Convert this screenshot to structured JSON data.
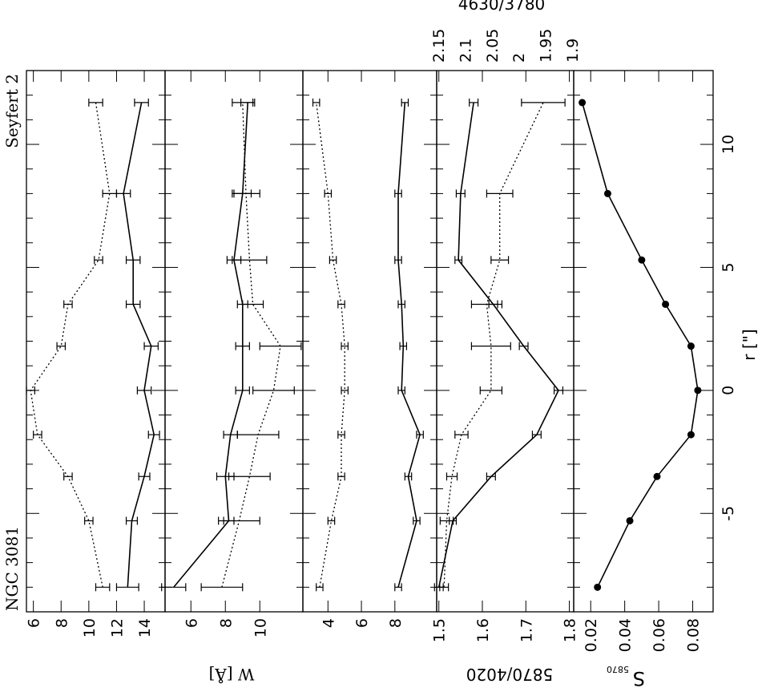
{
  "figure": {
    "object_label": "NGC 3081",
    "class_label": "Seyfert 2",
    "r_label": "r [\"]",
    "w_label": "W [Å]",
    "ratio_label": "5870/4020",
    "s_label": "S",
    "s_subscript": "5870",
    "top_axis_title": "4630/3780"
  },
  "chart_data": [
    {
      "type": "line",
      "panel": "W panel 1",
      "x": [
        -8,
        -5.3,
        -3.5,
        -1.8,
        0,
        1.8,
        3.5,
        5.3,
        8,
        11.7
      ],
      "ylim": [
        5.5,
        15.5
      ],
      "yticks": [
        6,
        8,
        10,
        12,
        14
      ],
      "series": [
        {
          "style": "solid",
          "values": [
            12.8,
            13.1,
            14.0,
            14.7,
            14.0,
            14.5,
            13.2,
            13.2,
            12.5,
            13.8
          ],
          "errors": [
            0.8,
            0.4,
            0.4,
            0.4,
            0.5,
            0.5,
            0.5,
            0.5,
            0.5,
            0.5
          ]
        },
        {
          "style": "dotted",
          "values": [
            11.0,
            10.0,
            8.5,
            6.3,
            5.8,
            8.0,
            8.5,
            10.7,
            11.5,
            10.5
          ],
          "errors": [
            0.5,
            0.3,
            0.3,
            0.3,
            0.3,
            0.3,
            0.3,
            0.3,
            0.5,
            0.5
          ]
        }
      ]
    },
    {
      "type": "line",
      "panel": "W panel 2",
      "x": [
        -8,
        -5.3,
        -3.5,
        -1.8,
        0,
        1.8,
        3.5,
        5.3,
        8,
        11.7
      ],
      "ylim": [
        4.5,
        12.5
      ],
      "yticks": [
        6,
        8,
        10
      ],
      "series": [
        {
          "style": "solid",
          "values": [
            5.0,
            8.2,
            8.0,
            8.3,
            9.0,
            9.0,
            9.0,
            8.5,
            9.0,
            9.3
          ],
          "errors": [
            0.7,
            0.3,
            0.5,
            0.4,
            0.4,
            0.4,
            0.3,
            0.4,
            0.5,
            0.4
          ]
        },
        {
          "style": "dotted",
          "values": [
            7.8,
            8.8,
            9.4,
            9.9,
            10.8,
            11.2,
            9.6,
            9.4,
            9.2,
            9.0
          ],
          "errors": [
            1.2,
            1.2,
            1.2,
            1.2,
            1.2,
            1.2,
            0.6,
            1.0,
            0.8,
            0.6
          ]
        }
      ]
    },
    {
      "type": "line",
      "panel": "W panel 3",
      "x": [
        -8,
        -5.3,
        -3.5,
        -1.8,
        0,
        1.8,
        3.5,
        5.3,
        8,
        11.7
      ],
      "ylim": [
        2.5,
        10.5
      ],
      "yticks": [
        4,
        6,
        8
      ],
      "series": [
        {
          "style": "solid",
          "values": [
            8.2,
            9.3,
            8.8,
            9.5,
            8.4,
            8.5,
            8.4,
            8.2,
            8.2,
            8.6
          ],
          "errors": [
            0.2,
            0.2,
            0.2,
            0.2,
            0.2,
            0.2,
            0.2,
            0.2,
            0.2,
            0.2
          ]
        },
        {
          "style": "dotted",
          "values": [
            3.5,
            4.2,
            4.8,
            4.8,
            5.0,
            5.0,
            4.8,
            4.3,
            4.0,
            3.3
          ],
          "errors": [
            0.2,
            0.2,
            0.2,
            0.2,
            0.2,
            0.2,
            0.2,
            0.2,
            0.2,
            0.2
          ]
        }
      ]
    },
    {
      "type": "line",
      "panel": "5870/4020 and 4630/3780",
      "x": [
        -8,
        -5.3,
        -3.5,
        -1.8,
        0,
        1.8,
        3.5,
        5.3,
        8,
        11.7
      ],
      "ylim": [
        1.495,
        1.81
      ],
      "yticks": [
        1.5,
        1.6,
        1.7,
        1.8
      ],
      "top_axis_ticks": [
        1.9,
        1.95,
        2,
        2.05,
        2.1,
        2.15
      ],
      "series": [
        {
          "style": "solid",
          "values": [
            1.5,
            1.532,
            1.62,
            1.725,
            1.775,
            1.695,
            1.625,
            1.545,
            1.55,
            1.58
          ],
          "errors": [
            0.01,
            0.008,
            0.01,
            0.01,
            0.01,
            0.01,
            0.01,
            0.008,
            0.01,
            0.01
          ]
        },
        {
          "style": "dotted",
          "values": [
            1.512,
            1.518,
            1.53,
            1.552,
            1.62,
            1.62,
            1.61,
            1.64,
            1.64,
            1.74
          ],
          "errors": [
            0.01,
            0.015,
            0.012,
            0.015,
            0.025,
            0.045,
            0.035,
            0.02,
            0.03,
            0.05
          ]
        }
      ]
    },
    {
      "type": "line",
      "panel": "S5870",
      "x": [
        -8,
        -5.3,
        -3.5,
        -1.8,
        0,
        1.8,
        3.5,
        5.3,
        8,
        11.7
      ],
      "ylim": [
        0.01,
        0.092
      ],
      "yticks": [
        0.02,
        0.04,
        0.06,
        0.08
      ],
      "xlim": [
        -9,
        13
      ],
      "xticks": [
        -5,
        0,
        5,
        10
      ],
      "xlabel": "r [\"]",
      "series": [
        {
          "style": "solid-markers",
          "values": [
            0.024,
            0.043,
            0.059,
            0.079,
            0.083,
            0.079,
            0.064,
            0.05,
            0.03,
            0.015
          ]
        }
      ]
    }
  ]
}
